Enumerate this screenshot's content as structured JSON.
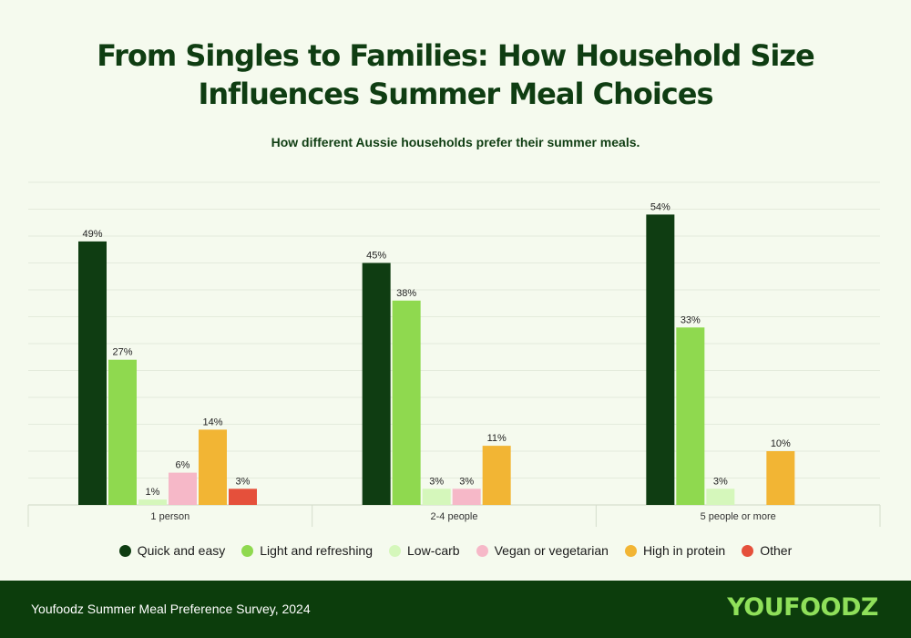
{
  "title_line1": "From Singles to Families: How Household Size",
  "title_line2": "Influences Summer Meal Choices",
  "subtitle": "How different Aussie households prefer their summer meals.",
  "footer": {
    "source": "Youfoodz Summer Meal Preference Survey, 2024",
    "logo": "YOUFOODZ"
  },
  "chart_data": {
    "type": "bar",
    "title": "From Singles to Families: How Household Size Influences Summer Meal Choices",
    "subtitle": "How different Aussie households prefer their summer meals.",
    "categories": [
      "1 person",
      "2-4 people",
      "5 people or more"
    ],
    "series": [
      {
        "name": "Quick and easy",
        "color": "#0f3d12",
        "values": [
          49,
          45,
          54
        ]
      },
      {
        "name": "Light and refreshing",
        "color": "#8fd94f",
        "values": [
          27,
          38,
          33
        ]
      },
      {
        "name": "Low-carb",
        "color": "#d5f7bb",
        "values": [
          1,
          3,
          3
        ]
      },
      {
        "name": "Vegan or vegetarian",
        "color": "#f6b8c8",
        "values": [
          6,
          3,
          null
        ]
      },
      {
        "name": "High in protein",
        "color": "#f2b534",
        "values": [
          14,
          11,
          10
        ]
      },
      {
        "name": "Other",
        "color": "#e5503b",
        "values": [
          3,
          null,
          null
        ]
      }
    ],
    "value_suffix": "%",
    "ylim": [
      0,
      60
    ],
    "grid": true,
    "legend": "bottom",
    "xlabel": "",
    "ylabel": ""
  }
}
